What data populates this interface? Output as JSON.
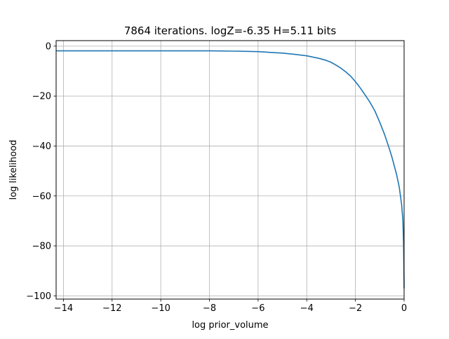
{
  "chart_data": {
    "type": "line",
    "title": "7864 iterations. logZ=-6.35 H=5.11 bits",
    "xlabel": "log prior_volume",
    "ylabel": "log likelihood",
    "xlim": [
      -14.3,
      0.0
    ],
    "ylim": [
      -101.3,
      2.2
    ],
    "xticks": [
      -14,
      -12,
      -10,
      -8,
      -6,
      -4,
      -2,
      0
    ],
    "xtick_labels": [
      "−14",
      "−12",
      "−10",
      "−8",
      "−6",
      "−4",
      "−2",
      "0"
    ],
    "yticks": [
      0,
      -20,
      -40,
      -60,
      -80,
      -100
    ],
    "ytick_labels": [
      "0",
      "−20",
      "−40",
      "−60",
      "−80",
      "−100"
    ],
    "grid": true,
    "series": [
      {
        "color": "#1f77b4",
        "x": [
          -14.3,
          -12.0,
          -10.0,
          -8.0,
          -7.0,
          -6.5,
          -6.0,
          -5.5,
          -5.0,
          -4.5,
          -4.0,
          -3.5,
          -3.2,
          -3.0,
          -2.8,
          -2.6,
          -2.4,
          -2.2,
          -2.0,
          -1.8,
          -1.6,
          -1.4,
          -1.2,
          -1.0,
          -0.8,
          -0.6,
          -0.5,
          -0.4,
          -0.3,
          -0.2,
          -0.1,
          -0.05,
          -0.02,
          0.0
        ],
        "y": [
          -1.9,
          -1.9,
          -1.9,
          -1.9,
          -2.0,
          -2.1,
          -2.2,
          -2.5,
          -2.8,
          -3.3,
          -3.9,
          -4.9,
          -5.7,
          -6.5,
          -7.6,
          -8.8,
          -10.3,
          -12.0,
          -14.2,
          -16.8,
          -19.6,
          -22.5,
          -26.0,
          -30.5,
          -35.5,
          -41.3,
          -44.5,
          -48.0,
          -51.8,
          -56.5,
          -63.5,
          -70.0,
          -80.0,
          -97.0
        ]
      }
    ]
  }
}
